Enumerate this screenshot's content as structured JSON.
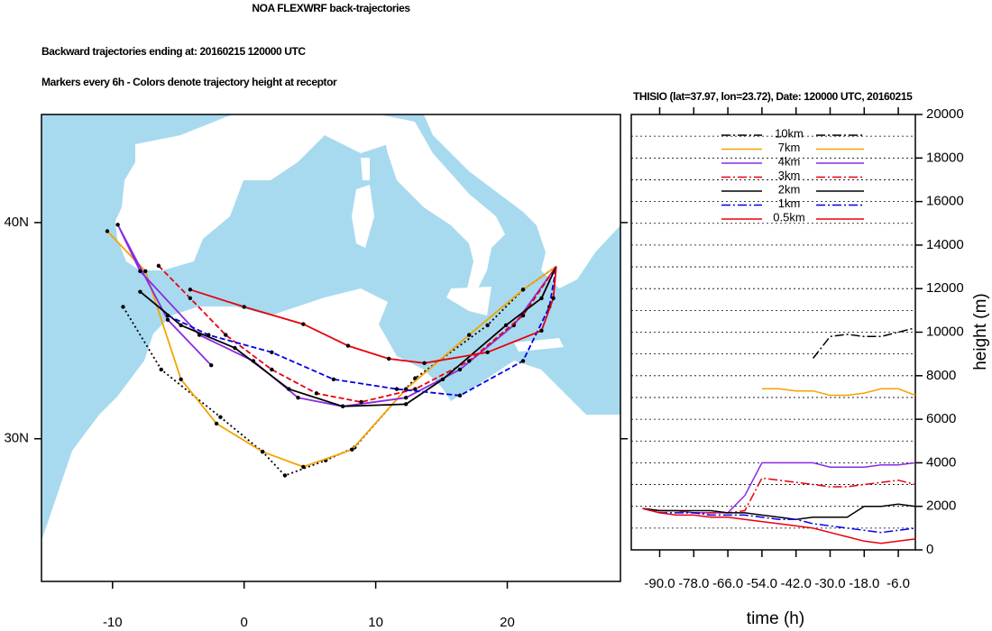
{
  "chart_data": [
    {
      "type": "trajectory-map",
      "title": "NOA FLEXWRF back-trajectories",
      "subtitle": "Backward trajectories ending at: 20160215  120000 UTC",
      "note": "Markers every 6h - Colors denote trajectory height at receptor",
      "xlim": [
        -15.4,
        28.6
      ],
      "ylim": [
        23.4,
        45
      ],
      "xticks": [
        -10,
        0,
        10,
        20
      ],
      "yticks": [
        {
          "value": 40,
          "label": "40N"
        },
        {
          "value": 30,
          "label": "30N"
        }
      ],
      "series": [
        {
          "color": "#000000",
          "dash": "dotted",
          "x": [
            -9.2,
            -6.3,
            -1.8,
            1.4,
            3.1,
            6.2,
            8.4,
            13.0,
            18.5,
            21.2,
            23.72
          ],
          "values": [
            36.1,
            33.2,
            31.0,
            29.4,
            28.3,
            29.0,
            29.6,
            32.8,
            35.25,
            36.9,
            37.97
          ]
        },
        {
          "color": "#f5a300",
          "dash": "solid",
          "x": [
            -10.4,
            -7.5,
            -4.8,
            -2.1,
            1.4,
            4.5,
            8.2,
            12.3,
            17.1,
            21.2,
            23.72
          ],
          "values": [
            39.6,
            37.75,
            32.75,
            30.7,
            29.4,
            28.7,
            29.5,
            32.3,
            34.8,
            36.9,
            37.97
          ]
        },
        {
          "color": "#8a2be2",
          "dash": "solid",
          "x": [
            -2.5,
            -5.8,
            -9.6,
            -7.9,
            -3.4,
            0.7,
            4.1,
            7.5,
            12.3,
            16.4,
            20.5,
            23.72
          ],
          "values": [
            33.4,
            35.5,
            39.9,
            37.75,
            34.8,
            33.6,
            31.9,
            31.5,
            31.9,
            33.2,
            35.25,
            37.97
          ]
        },
        {
          "color": "#e8000b",
          "dash": "dashed",
          "x": [
            -6.5,
            -4.1,
            -1.4,
            2.1,
            5.5,
            8.9,
            13.0,
            17.1,
            21.2,
            23.72
          ],
          "values": [
            38.0,
            36.5,
            34.8,
            33.2,
            32.1,
            31.7,
            32.3,
            33.6,
            35.7,
            37.97
          ]
        },
        {
          "color": "#000000",
          "dash": "solid",
          "x": [
            -7.9,
            -4.8,
            -0.7,
            3.4,
            7.5,
            12.3,
            15.1,
            19.9,
            22.6,
            23.72
          ],
          "values": [
            36.8,
            35.25,
            34.2,
            32.3,
            31.5,
            31.6,
            32.75,
            35.25,
            36.5,
            37.97
          ]
        },
        {
          "color": "#0000e6",
          "dash": "dashed",
          "x": [
            -5.8,
            -2.7,
            2.1,
            6.8,
            11.6,
            16.4,
            21.2,
            23.2,
            23.72
          ],
          "values": [
            35.7,
            34.8,
            34.0,
            32.75,
            32.3,
            32.0,
            33.6,
            36.1,
            37.97
          ]
        },
        {
          "color": "#e8000b",
          "dash": "solid",
          "x": [
            -4.1,
            0,
            4.5,
            7.9,
            11.0,
            13.7,
            18.5,
            22.6,
            23.5,
            23.72
          ],
          "values": [
            36.9,
            36.1,
            35.3,
            34.3,
            33.7,
            33.5,
            34.0,
            35.0,
            36.5,
            37.97
          ]
        }
      ]
    },
    {
      "type": "line",
      "title": "THISIO (lat=37.97,  lon=23.72), Date: 120000 UTC, 20160215",
      "xlabel": "time (h)",
      "ylabel": "height (m)",
      "xlim": [
        -100,
        0
      ],
      "ylim": [
        0,
        20000
      ],
      "xticks": [
        {
          "value": -90,
          "label": "-90.0"
        },
        {
          "value": -78,
          "label": "-78.0"
        },
        {
          "value": -66,
          "label": "-66.0"
        },
        {
          "value": -54,
          "label": "-54.0"
        },
        {
          "value": -42,
          "label": "-42.0"
        },
        {
          "value": -30,
          "label": "-30.0"
        },
        {
          "value": -18,
          "label": "-18.0"
        },
        {
          "value": -6,
          "label": "-6.0"
        }
      ],
      "yticks": [
        0,
        2000,
        4000,
        6000,
        8000,
        10000,
        12000,
        14000,
        16000,
        18000,
        20000
      ],
      "minor_yticks": [
        1000,
        3000,
        5000,
        7000,
        9000,
        11000,
        13000,
        15000,
        17000,
        19000
      ],
      "grid": true,
      "x": [
        -96,
        -90,
        -84,
        -78,
        -72,
        -66,
        -60,
        -54,
        -48,
        -42,
        -36,
        -30,
        -24,
        -18,
        -12,
        -6,
        0
      ],
      "series": [
        {
          "name": "10km",
          "color": "#000000",
          "dash": "dashdot",
          "values": [
            null,
            null,
            null,
            null,
            null,
            null,
            null,
            null,
            null,
            null,
            8800,
            9800,
            9900,
            9800,
            9800,
            10000,
            10200
          ]
        },
        {
          "name": "7km",
          "color": "#f5a300",
          "dash": "solid",
          "values": [
            null,
            null,
            null,
            null,
            null,
            null,
            null,
            7400,
            7400,
            7300,
            7300,
            7100,
            7100,
            7200,
            7400,
            7400,
            7100
          ]
        },
        {
          "name": "4km",
          "color": "#8a2be2",
          "dash": "solid",
          "values": [
            1900,
            1800,
            1800,
            1700,
            1700,
            1700,
            2500,
            4000,
            4000,
            4000,
            4000,
            3800,
            3800,
            3800,
            3900,
            3900,
            4000
          ]
        },
        {
          "name": "3km",
          "color": "#e8000b",
          "dash": "dashdot",
          "values": [
            1900,
            1800,
            1800,
            1700,
            1700,
            1700,
            1800,
            3300,
            3200,
            3100,
            3000,
            2900,
            2900,
            3000,
            3100,
            3200,
            3000
          ]
        },
        {
          "name": "2km",
          "color": "#000000",
          "dash": "solid",
          "values": [
            1900,
            1800,
            1800,
            1800,
            1800,
            1700,
            1700,
            1600,
            1500,
            1400,
            1500,
            1500,
            1500,
            2000,
            2000,
            2100,
            2000
          ]
        },
        {
          "name": "1km",
          "color": "#0000e6",
          "dash": "dashdot",
          "values": [
            1900,
            1700,
            1700,
            1700,
            1600,
            1600,
            1600,
            1500,
            1400,
            1400,
            1200,
            1100,
            1000,
            900,
            800,
            900,
            1000
          ]
        },
        {
          "name": "0.5km",
          "color": "#e8000b",
          "dash": "solid",
          "values": [
            1900,
            1700,
            1600,
            1600,
            1500,
            1500,
            1400,
            1300,
            1200,
            1100,
            1000,
            800,
            600,
            400,
            300,
            400,
            500
          ]
        }
      ]
    }
  ]
}
